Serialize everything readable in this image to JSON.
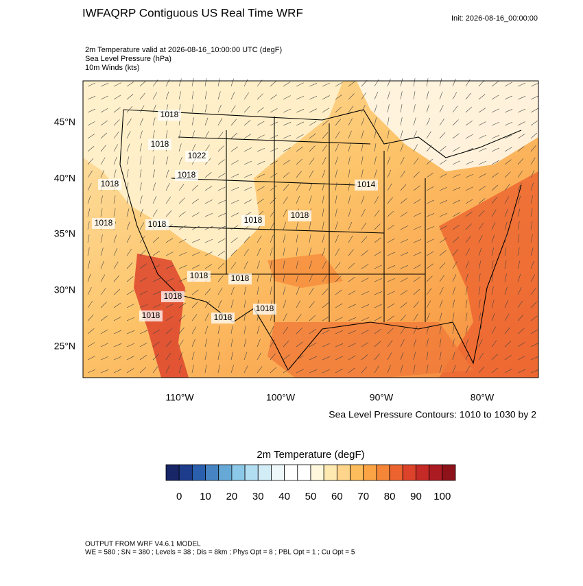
{
  "header": {
    "title": "IWFAQRP Contiguous US Real Time WRF",
    "init": "Init: 2026-08-16_00:00:00",
    "fields": [
      "2m Temperature valid at 2026-08-16_10:00:00 UTC   (degF)",
      "Sea Level Pressure   (hPa)",
      "10m Winds   (kts)"
    ]
  },
  "map": {
    "lat_labels": [
      "45°N",
      "40°N",
      "35°N",
      "30°N",
      "25°N"
    ],
    "lon_labels": [
      "110°W",
      "100°W",
      "90°W",
      "80°W"
    ],
    "contour_labels": [
      "1018",
      "1018",
      "1018",
      "1018",
      "1022",
      "1018",
      "1018",
      "1014",
      "1018",
      "1018",
      "1018",
      "1018",
      "1018",
      "1018",
      "1018",
      "1018"
    ],
    "contour_note": "Sea Level Pressure Contours: 1010 to 1030 by 2"
  },
  "colorbar": {
    "title": "2m Temperature  (degF)",
    "labels": [
      0,
      10,
      20,
      30,
      40,
      50,
      60,
      70,
      80,
      90,
      100
    ],
    "colors": [
      "#182566",
      "#1d3c8c",
      "#2a5fae",
      "#4784c4",
      "#67a9d6",
      "#8cc8e8",
      "#b2def2",
      "#d3edf7",
      "#eef8fb",
      "#ffffff",
      "#ffffff",
      "#fff8dc",
      "#fee9b0",
      "#fed58a",
      "#fdbd5c",
      "#fba445",
      "#f58638",
      "#ec6330",
      "#dd432b",
      "#c62a26",
      "#ac1a22",
      "#8e1219"
    ]
  },
  "footer": {
    "lines": [
      "OUTPUT FROM WRF V4.6.1 MODEL",
      "WE = 580 ; SN = 380 ; Levels = 38 ; Dis = 8km ; Phys Opt = 8 ; PBL Opt = 1 ; Cu Opt = 5"
    ]
  }
}
